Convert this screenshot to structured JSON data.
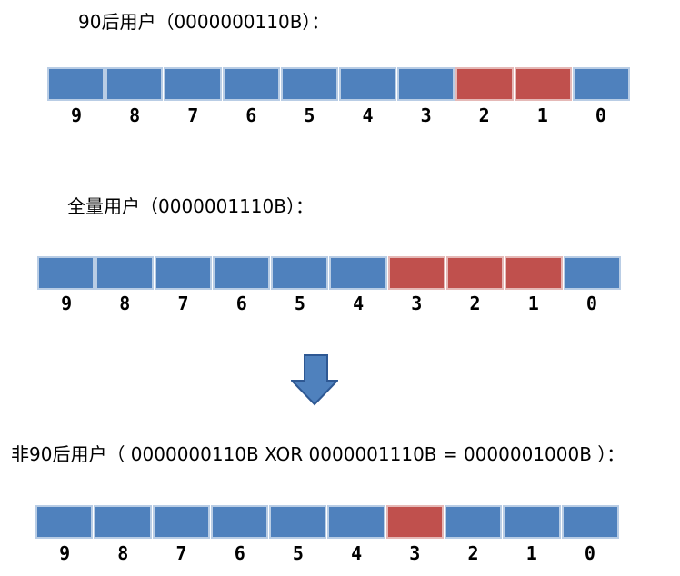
{
  "diagram_title": "Bitmap XOR user-segment diagram",
  "colors": {
    "cell_blue": "#4f81bd",
    "cell_blue_border": "#b9cde5",
    "cell_red": "#c0504d",
    "cell_red_border": "#e5b9b7",
    "arrow_fill": "#4f81bd",
    "arrow_border": "#2e5893",
    "text": "#000000",
    "background": "#ffffff"
  },
  "arrow": {
    "name": "down-block-arrow"
  },
  "sections": [
    {
      "title": "90后用户（0000000110B）：",
      "bit_labels": [
        "9",
        "8",
        "7",
        "6",
        "5",
        "4",
        "3",
        "2",
        "1",
        "0"
      ],
      "red_bits": [
        2,
        1
      ]
    },
    {
      "title": "全量用户（0000001110B）：",
      "bit_labels": [
        "9",
        "8",
        "7",
        "6",
        "5",
        "4",
        "3",
        "2",
        "1",
        "0"
      ],
      "red_bits": [
        3,
        2,
        1
      ]
    },
    {
      "title": "非90后用户（ 0000000110B  XOR  0000001110B = 0000001000B ）：",
      "bit_labels": [
        "9",
        "8",
        "7",
        "6",
        "5",
        "4",
        "3",
        "2",
        "1",
        "0"
      ],
      "red_bits": [
        3
      ]
    }
  ]
}
